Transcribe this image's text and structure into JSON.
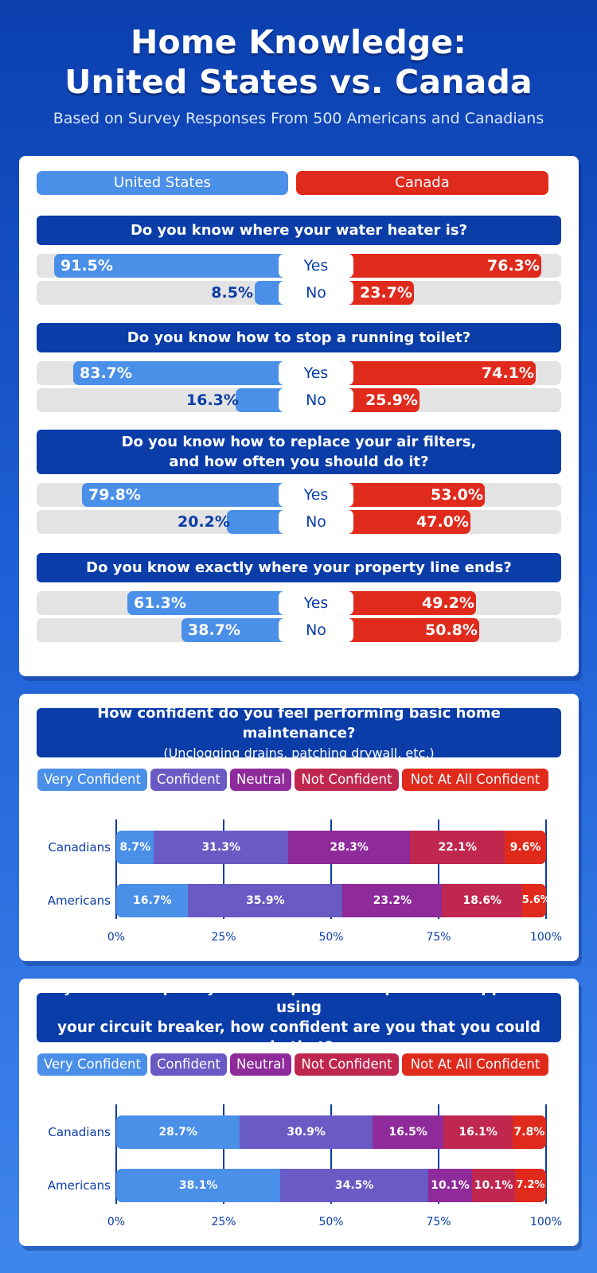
{
  "header": {
    "title_line1": "Home Knowledge:",
    "title_line2": "United States vs. Canada",
    "subtitle": "Based on Survey Responses From 500 Americans and Canadians"
  },
  "colors": {
    "us": "#4a8fe8",
    "canada": "#e02a1c",
    "very_confident": "#4a8fe8",
    "confident": "#6a5ac4",
    "neutral": "#8e2a9a",
    "not_confident": "#c0274f",
    "not_at_all_confident": "#e02a1c",
    "banner": "#0a3da8"
  },
  "legend": {
    "us": "United States",
    "canada": "Canada"
  },
  "chart_data": [
    {
      "type": "bar",
      "questions": [
        {
          "question_line1": "Do you know where your water heater is?",
          "question_line2": "",
          "yes_label": "Yes",
          "no_label": "No",
          "us": {
            "yes": 91.5,
            "no": 8.5
          },
          "canada": {
            "yes": 76.3,
            "no": 23.7
          },
          "us_yes_text": "91.5%",
          "us_no_text": "8.5%",
          "ca_yes_text": "76.3%",
          "ca_no_text": "23.7%"
        },
        {
          "question_line1": "Do you know how to stop a running toilet?",
          "question_line2": "",
          "yes_label": "Yes",
          "no_label": "No",
          "us": {
            "yes": 83.7,
            "no": 16.3
          },
          "canada": {
            "yes": 74.1,
            "no": 25.9
          },
          "us_yes_text": "83.7%",
          "us_no_text": "16.3%",
          "ca_yes_text": "74.1%",
          "ca_no_text": "25.9%"
        },
        {
          "question_line1": "Do you know how to replace your air filters,",
          "question_line2": "and how often you should do it?",
          "yes_label": "Yes",
          "no_label": "No",
          "us": {
            "yes": 79.8,
            "no": 20.2
          },
          "canada": {
            "yes": 53.0,
            "no": 47.0
          },
          "us_yes_text": "79.8%",
          "us_no_text": "20.2%",
          "ca_yes_text": "53.0%",
          "ca_no_text": "47.0%"
        },
        {
          "question_line1": "Do you know exactly where your property line ends?",
          "question_line2": "",
          "yes_label": "Yes",
          "no_label": "No",
          "us": {
            "yes": 61.3,
            "no": 38.7
          },
          "canada": {
            "yes": 49.2,
            "no": 50.8
          },
          "us_yes_text": "61.3%",
          "us_no_text": "38.7%",
          "ca_yes_text": "49.2%",
          "ca_no_text": "50.8%"
        }
      ]
    },
    {
      "type": "bar",
      "stacked": true,
      "title_line1": "How confident do you feel performing basic home maintenance?",
      "title_line2": "(Unclogging drains, patching drywall, etc.)",
      "categories": [
        "Canadians",
        "Americans"
      ],
      "series": [
        {
          "name": "Very Confident",
          "values": [
            8.7,
            16.7
          ]
        },
        {
          "name": "Confident",
          "values": [
            31.3,
            35.9
          ]
        },
        {
          "name": "Neutral",
          "values": [
            28.3,
            23.2
          ]
        },
        {
          "name": "Not Confident",
          "values": [
            22.1,
            18.6
          ]
        },
        {
          "name": "Not At All Confident",
          "values": [
            9.6,
            5.6
          ]
        }
      ],
      "xlim": [
        0,
        100
      ],
      "xticks": [
        "0%",
        "25%",
        "50%",
        "75%",
        "100%"
      ]
    },
    {
      "type": "bar",
      "stacked": true,
      "title_line1": "If you had to quickly shut off power to a particular appliance using",
      "title_line2": "your circuit breaker, how confident are you that you could do that?",
      "categories": [
        "Canadians",
        "Americans"
      ],
      "series": [
        {
          "name": "Very Confident",
          "values": [
            28.7,
            38.1
          ]
        },
        {
          "name": "Confident",
          "values": [
            30.9,
            34.5
          ]
        },
        {
          "name": "Neutral",
          "values": [
            16.5,
            10.1
          ]
        },
        {
          "name": "Not Confident",
          "values": [
            16.1,
            10.1
          ]
        },
        {
          "name": "Not At All Confident",
          "values": [
            7.8,
            7.2
          ]
        }
      ],
      "xlim": [
        0,
        100
      ],
      "xticks": [
        "0%",
        "25%",
        "50%",
        "75%",
        "100%"
      ]
    }
  ]
}
